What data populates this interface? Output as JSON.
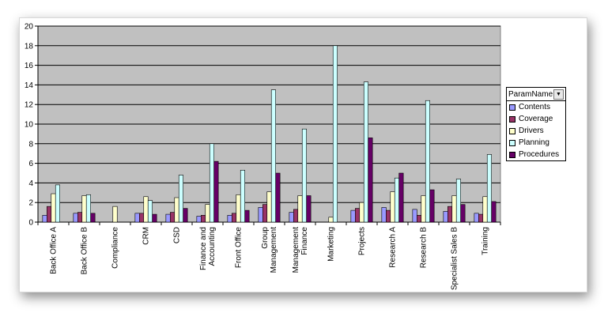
{
  "chart_data": {
    "type": "bar",
    "title": "",
    "xlabel": "",
    "ylabel": "",
    "ylim": [
      0,
      20
    ],
    "yticks": [
      0,
      2,
      4,
      6,
      8,
      10,
      12,
      14,
      16,
      18,
      20
    ],
    "grid": true,
    "legend_position": "right",
    "legend_title": "ParamName",
    "plot_background": "#c0c0c0",
    "categories": [
      "Back Office A",
      "Back Office B",
      "Compliance",
      "CRM",
      "CSD",
      "Finance and Accounting",
      "Front Office",
      "Group Management",
      "Management Finance",
      "Marketing",
      "Projects",
      "Research A",
      "Research B",
      "Specialist Sales B",
      "Training"
    ],
    "category_lines": [
      [
        "Back Office A"
      ],
      [
        "Back Office B"
      ],
      [
        "Compliance"
      ],
      [
        "CRM"
      ],
      [
        "CSD"
      ],
      [
        "Finance and",
        "Accounting"
      ],
      [
        "Front Office"
      ],
      [
        "Group",
        "Management"
      ],
      [
        "Management",
        "Finance"
      ],
      [
        "Marketing"
      ],
      [
        "Projects"
      ],
      [
        "Research A"
      ],
      [
        "Research B"
      ],
      [
        "Specialist Sales B"
      ],
      [
        "Training"
      ]
    ],
    "series": [
      {
        "name": "Contents",
        "color": "#9999ff",
        "values": [
          0.7,
          0.9,
          0,
          0.9,
          0.8,
          0.6,
          0.7,
          1.5,
          1.0,
          0,
          1.2,
          1.5,
          1.3,
          1.1,
          0.9
        ]
      },
      {
        "name": "Coverage",
        "color": "#993366",
        "values": [
          1.6,
          1.0,
          0,
          0.9,
          1.0,
          0.7,
          0.9,
          1.8,
          1.3,
          0,
          1.4,
          1.2,
          0.7,
          1.6,
          0.8
        ]
      },
      {
        "name": "Drivers",
        "color": "#ffffcc",
        "values": [
          2.9,
          2.7,
          1.6,
          2.6,
          2.5,
          1.8,
          2.8,
          3.1,
          2.7,
          0.5,
          2.0,
          3.1,
          2.7,
          2.7,
          2.6
        ]
      },
      {
        "name": "Planning",
        "color": "#ccffff",
        "values": [
          3.8,
          2.8,
          0,
          2.2,
          4.8,
          8.0,
          5.3,
          13.5,
          9.5,
          18.0,
          14.3,
          4.5,
          12.4,
          4.4,
          6.9
        ]
      },
      {
        "name": "Procedures",
        "color": "#660066",
        "values": [
          0,
          0.9,
          0,
          0.8,
          1.4,
          6.2,
          1.2,
          5.0,
          2.7,
          0,
          8.6,
          5.0,
          3.3,
          1.8,
          2.1
        ]
      }
    ]
  }
}
